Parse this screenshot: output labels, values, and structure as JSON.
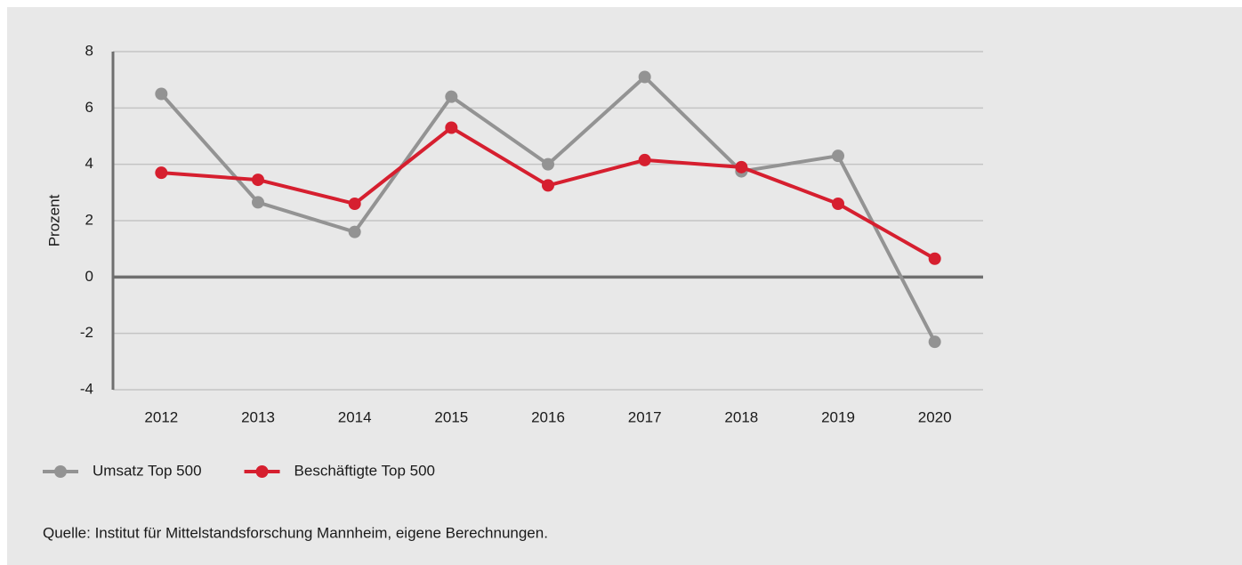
{
  "chart_data": {
    "type": "line",
    "ylabel": "Prozent",
    "categories": [
      "2012",
      "2013",
      "2014",
      "2015",
      "2016",
      "2017",
      "2018",
      "2019",
      "2020"
    ],
    "series": [
      {
        "name": "Umsatz Top 500",
        "color": "#939393",
        "values": [
          6.5,
          2.65,
          1.6,
          6.4,
          4.0,
          7.1,
          3.75,
          4.3,
          -2.3
        ]
      },
      {
        "name": "Beschäftigte Top 500",
        "color": "#d61f2f",
        "values": [
          3.7,
          3.45,
          2.6,
          5.3,
          3.25,
          4.15,
          3.9,
          2.6,
          0.65
        ]
      }
    ],
    "ylim": [
      -4,
      8
    ],
    "yticks": [
      -4,
      -2,
      0,
      2,
      4,
      6,
      8
    ],
    "grid": true,
    "source": "Quelle: Institut für Mittelstandsforschung Mannheim, eigene Berechnungen."
  }
}
